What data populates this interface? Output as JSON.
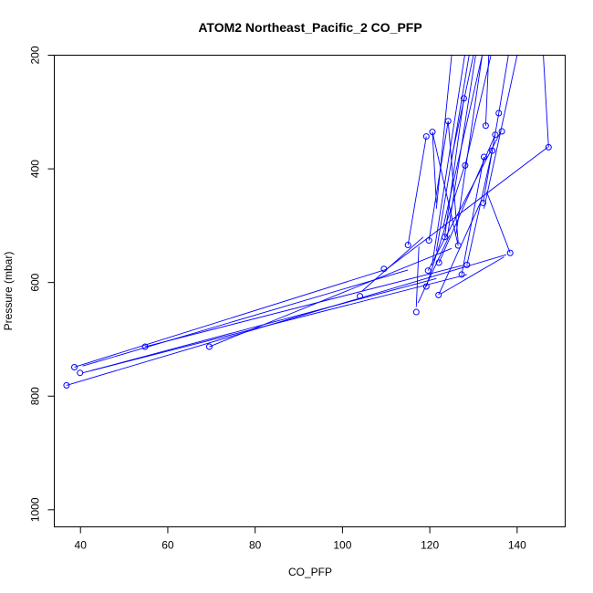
{
  "chart_data": {
    "type": "scatter",
    "title": "ATOM2 Northeast_Pacific_2 CO_PFP",
    "xlabel": "CO_PFP",
    "ylabel": "Pressure (mbar)",
    "xlim": [
      34,
      151
    ],
    "ylim": [
      1030,
      200
    ],
    "y_reversed": true,
    "grid": false,
    "x_ticks": [
      40,
      60,
      80,
      100,
      120,
      140
    ],
    "y_ticks": [
      200,
      400,
      600,
      800,
      1000
    ],
    "x_tick_labels": [
      "40",
      "60",
      "80",
      "100",
      "120",
      "140"
    ],
    "y_tick_labels": [
      "200",
      "400",
      "600",
      "800",
      "1000"
    ],
    "series_color": "#0000ff",
    "points": [
      {
        "x": 116.9,
        "y": 652
      },
      {
        "x": 109.5,
        "y": 576
      },
      {
        "x": 104,
        "y": 624
      },
      {
        "x": 122,
        "y": 622
      },
      {
        "x": 119.2,
        "y": 607
      },
      {
        "x": 127.3,
        "y": 586
      },
      {
        "x": 119.6,
        "y": 579
      },
      {
        "x": 128.5,
        "y": 569
      },
      {
        "x": 122.1,
        "y": 565
      },
      {
        "x": 138.4,
        "y": 548
      },
      {
        "x": 115,
        "y": 534
      },
      {
        "x": 126.5,
        "y": 535
      },
      {
        "x": 119.8,
        "y": 526
      },
      {
        "x": 123.4,
        "y": 520
      },
      {
        "x": 132.2,
        "y": 460
      },
      {
        "x": 128.1,
        "y": 394
      },
      {
        "x": 132.4,
        "y": 379
      },
      {
        "x": 134.3,
        "y": 368
      },
      {
        "x": 147.2,
        "y": 362
      },
      {
        "x": 119.2,
        "y": 343
      },
      {
        "x": 135,
        "y": 340
      },
      {
        "x": 120.6,
        "y": 335
      },
      {
        "x": 136.5,
        "y": 334
      },
      {
        "x": 132.8,
        "y": 324
      },
      {
        "x": 124.2,
        "y": 316
      },
      {
        "x": 135.8,
        "y": 302
      },
      {
        "x": 127.8,
        "y": 276
      },
      {
        "x": 54.8,
        "y": 713
      },
      {
        "x": 69.5,
        "y": 713
      },
      {
        "x": 38.6,
        "y": 749
      },
      {
        "x": 39.9,
        "y": 759
      },
      {
        "x": 36.8,
        "y": 781
      }
    ],
    "segments": [
      {
        "x1": 36.8,
        "y1": 781,
        "x2": 137.5,
        "y2": 551
      },
      {
        "x1": 40.5,
        "y1": 759,
        "x2": 128.5,
        "y2": 586
      },
      {
        "x1": 38.6,
        "y1": 749,
        "x2": 110,
        "y2": 577
      },
      {
        "x1": 42.5,
        "y1": 755,
        "x2": 121.5,
        "y2": 593
      },
      {
        "x1": 54.8,
        "y1": 713,
        "x2": 127.5,
        "y2": 570
      },
      {
        "x1": 69.5,
        "y1": 713,
        "x2": 125,
        "y2": 540
      },
      {
        "x1": 40.5,
        "y1": 747,
        "x2": 115,
        "y2": 578
      },
      {
        "x1": 104.5,
        "y1": 615,
        "x2": 118.5,
        "y2": 520
      },
      {
        "x1": 110,
        "y1": 577,
        "x2": 147,
        "y2": 362
      },
      {
        "x1": 116.9,
        "y1": 643,
        "x2": 117.5,
        "y2": 537
      },
      {
        "x1": 117.3,
        "y1": 636,
        "x2": 124.5,
        "y2": 517
      },
      {
        "x1": 122,
        "y1": 622,
        "x2": 131.5,
        "y2": 461
      },
      {
        "x1": 122.5,
        "y1": 620,
        "x2": 137,
        "y2": 555
      },
      {
        "x1": 119.2,
        "y1": 607,
        "x2": 128,
        "y2": 394
      },
      {
        "x1": 127.3,
        "y1": 586,
        "x2": 132.4,
        "y2": 379
      },
      {
        "x1": 119.6,
        "y1": 579,
        "x2": 136.3,
        "y2": 334
      },
      {
        "x1": 128.5,
        "y1": 569,
        "x2": 134.3,
        "y2": 368
      },
      {
        "x1": 122.1,
        "y1": 565,
        "x2": 135,
        "y2": 340
      },
      {
        "x1": 138.4,
        "y1": 548,
        "x2": 133,
        "y2": 440
      },
      {
        "x1": 115,
        "y1": 534,
        "x2": 119.2,
        "y2": 343
      },
      {
        "x1": 126.5,
        "y1": 535,
        "x2": 120.6,
        "y2": 335
      },
      {
        "x1": 119.8,
        "y1": 526,
        "x2": 124.2,
        "y2": 316
      },
      {
        "x1": 123.4,
        "y1": 520,
        "x2": 127.8,
        "y2": 276
      },
      {
        "x1": 132.2,
        "y1": 460,
        "x2": 135.8,
        "y2": 302
      },
      {
        "x1": 132.4,
        "y1": 470,
        "x2": 140,
        "y2": 200
      },
      {
        "x1": 120.6,
        "y1": 335,
        "x2": 121.5,
        "y2": 460
      },
      {
        "x1": 124.2,
        "y1": 316,
        "x2": 126.5,
        "y2": 530
      },
      {
        "x1": 147.2,
        "y1": 362,
        "x2": 146,
        "y2": 200
      },
      {
        "x1": 128.1,
        "y1": 394,
        "x2": 134,
        "y2": 200
      },
      {
        "x1": 120.5,
        "y1": 570,
        "x2": 128,
        "y2": 200
      },
      {
        "x1": 121.5,
        "y1": 545,
        "x2": 129,
        "y2": 200
      },
      {
        "x1": 124,
        "y1": 520,
        "x2": 130.5,
        "y2": 200
      },
      {
        "x1": 126,
        "y1": 515,
        "x2": 132,
        "y2": 200
      },
      {
        "x1": 125,
        "y1": 380,
        "x2": 130,
        "y2": 200
      },
      {
        "x1": 132.8,
        "y1": 324,
        "x2": 133.5,
        "y2": 200
      },
      {
        "x1": 135.8,
        "y1": 302,
        "x2": 138,
        "y2": 200
      },
      {
        "x1": 121.5,
        "y1": 470,
        "x2": 125,
        "y2": 200
      },
      {
        "x1": 123,
        "y1": 505,
        "x2": 132,
        "y2": 200
      }
    ]
  }
}
